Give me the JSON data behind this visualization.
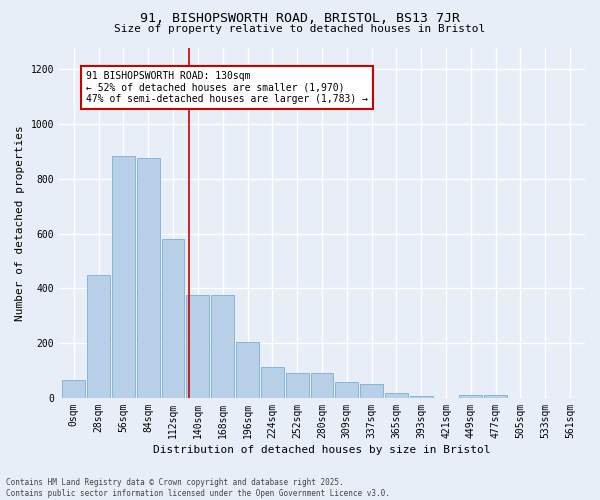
{
  "title1": "91, BISHOPSWORTH ROAD, BRISTOL, BS13 7JR",
  "title2": "Size of property relative to detached houses in Bristol",
  "xlabel": "Distribution of detached houses by size in Bristol",
  "ylabel": "Number of detached properties",
  "bar_color": "#b8cfe8",
  "bar_edge_color": "#7aafd4",
  "background_color": "#e8eef8",
  "grid_color": "#ffffff",
  "categories": [
    "0sqm",
    "28sqm",
    "56sqm",
    "84sqm",
    "112sqm",
    "140sqm",
    "168sqm",
    "196sqm",
    "224sqm",
    "252sqm",
    "280sqm",
    "309sqm",
    "337sqm",
    "365sqm",
    "393sqm",
    "421sqm",
    "449sqm",
    "477sqm",
    "505sqm",
    "533sqm",
    "561sqm"
  ],
  "values": [
    65,
    450,
    885,
    875,
    580,
    375,
    375,
    205,
    112,
    90,
    90,
    60,
    52,
    17,
    7,
    0,
    12,
    12,
    0,
    0,
    0
  ],
  "ylim": [
    0,
    1280
  ],
  "yticks": [
    0,
    200,
    400,
    600,
    800,
    1000,
    1200
  ],
  "vline_x_index": 4.65,
  "annotation_text": "91 BISHOPSWORTH ROAD: 130sqm\n← 52% of detached houses are smaller (1,970)\n47% of semi-detached houses are larger (1,783) →",
  "annotation_box_color": "#ffffff",
  "annotation_box_edge": "#cc0000",
  "vline_color": "#cc0000",
  "footer": "Contains HM Land Registry data © Crown copyright and database right 2025.\nContains public sector information licensed under the Open Government Licence v3.0.",
  "title1_fontsize": 9.5,
  "title2_fontsize": 8,
  "ylabel_fontsize": 8,
  "xlabel_fontsize": 8,
  "tick_fontsize": 7,
  "annot_fontsize": 7
}
